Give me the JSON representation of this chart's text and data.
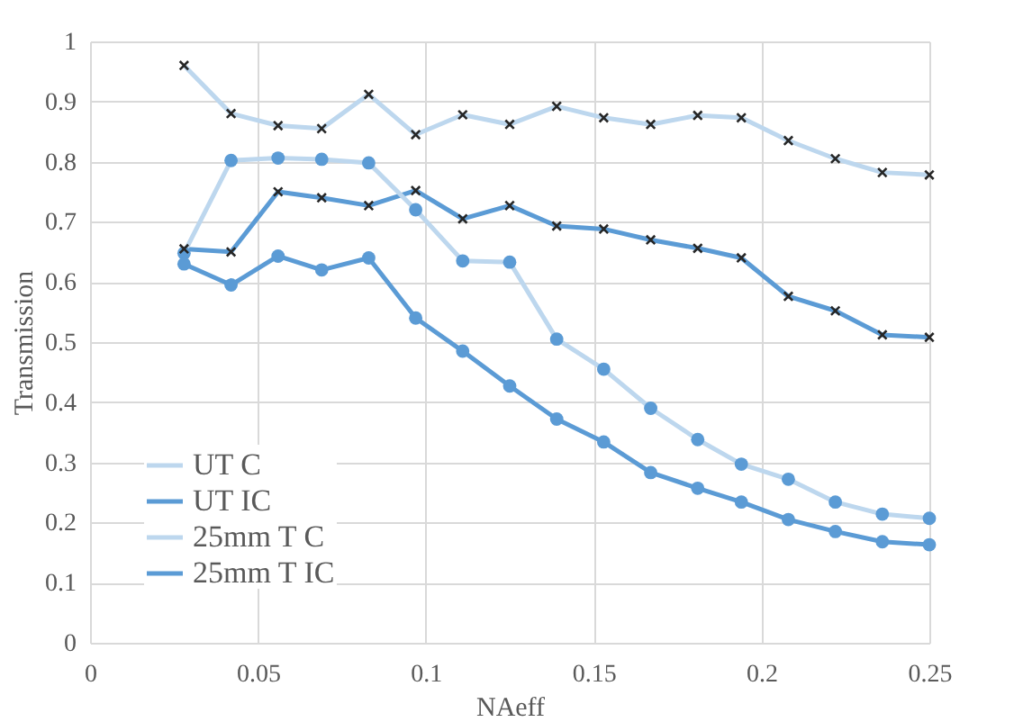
{
  "chart_data": {
    "type": "line",
    "xlabel": "NAeff",
    "ylabel": "Transmission",
    "x": [
      0.028,
      0.042,
      0.056,
      0.069,
      0.083,
      0.097,
      0.111,
      0.125,
      0.139,
      0.153,
      0.167,
      0.181,
      0.194,
      0.208,
      0.222,
      0.236,
      0.25
    ],
    "series": [
      {
        "name": "UT C",
        "color": "#bdd7ee",
        "marker": "cross",
        "values": [
          0.96,
          0.88,
          0.86,
          0.855,
          0.912,
          0.845,
          0.878,
          0.862,
          0.892,
          0.873,
          0.862,
          0.877,
          0.873,
          0.835,
          0.805,
          0.782,
          0.778
        ]
      },
      {
        "name": "UT IC",
        "color": "#5b9bd5",
        "marker": "cross",
        "values": [
          0.655,
          0.65,
          0.75,
          0.74,
          0.727,
          0.752,
          0.705,
          0.727,
          0.693,
          0.688,
          0.67,
          0.656,
          0.64,
          0.576,
          0.552,
          0.512,
          0.508
        ]
      },
      {
        "name": "25mm T C",
        "color": "#bdd7ee",
        "marker": "circle",
        "values": [
          0.648,
          0.802,
          0.806,
          0.804,
          0.798,
          0.72,
          0.635,
          0.633,
          0.505,
          0.455,
          0.39,
          0.338,
          0.297,
          0.272,
          0.234,
          0.214,
          0.207
        ]
      },
      {
        "name": "25mm T IC",
        "color": "#5b9bd5",
        "marker": "circle",
        "values": [
          0.63,
          0.595,
          0.643,
          0.62,
          0.64,
          0.54,
          0.485,
          0.427,
          0.372,
          0.334,
          0.283,
          0.257,
          0.234,
          0.205,
          0.185,
          0.168,
          0.163
        ]
      }
    ],
    "xlim": [
      0,
      0.25
    ],
    "xticks": [
      0,
      0.05,
      0.1,
      0.15,
      0.2,
      0.25
    ],
    "ylim": [
      0,
      1
    ],
    "yticks": [
      0,
      0.1,
      0.2,
      0.3,
      0.4,
      0.5,
      0.6,
      0.7,
      0.8,
      0.9,
      1
    ],
    "grid": true,
    "legend": "bottom left"
  }
}
